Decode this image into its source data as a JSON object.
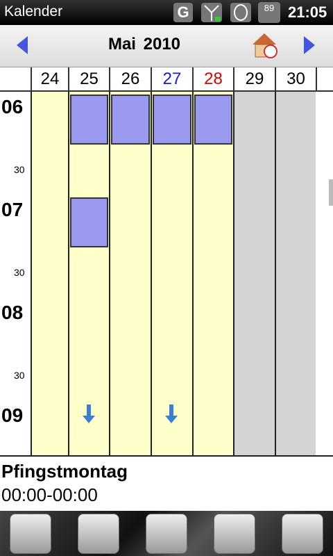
{
  "status": {
    "app_title": "Kalender",
    "network": "G",
    "battery": "89",
    "time": "21:05"
  },
  "header": {
    "month": "Mai 2010"
  },
  "days": [
    "24",
    "25",
    "26",
    "27",
    "28",
    "29",
    "30"
  ],
  "hours": [
    "06",
    "30",
    "07",
    "30",
    "08",
    "30",
    "09"
  ],
  "event": {
    "title": "Pfingstmontag",
    "time": "00:00-00:00"
  }
}
